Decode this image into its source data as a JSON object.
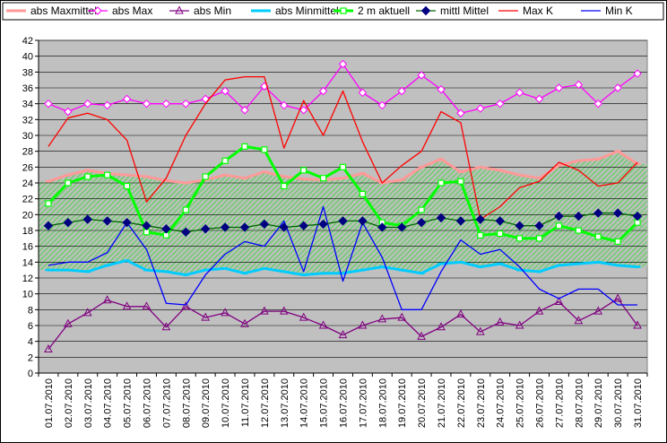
{
  "chart_data": {
    "type": "line",
    "title": "",
    "xlabel": "",
    "ylabel": "",
    "ylim": [
      0,
      42
    ],
    "yticks": [
      0,
      2,
      4,
      6,
      8,
      10,
      12,
      14,
      16,
      18,
      20,
      22,
      24,
      26,
      28,
      30,
      32,
      34,
      36,
      38,
      40,
      42
    ],
    "grid": true,
    "legend_position": "top",
    "plot_background": "#c0c0c0",
    "band_fill": "#7fc97f",
    "categories": [
      "01.07.2010",
      "02.07.2010",
      "03.07.2010",
      "04.07.2010",
      "05.07.2010",
      "06.07.2010",
      "07.07.2010",
      "08.07.2010",
      "09.07.2010",
      "10.07.2010",
      "11.07.2010",
      "12.07.2010",
      "13.07.2010",
      "14.07.2010",
      "15.07.2010",
      "16.07.2010",
      "17.07.2010",
      "18.07.2010",
      "19.07.2010",
      "20.07.2010",
      "21.07.2010",
      "22.07.2010",
      "23.07.2010",
      "24.07.2010",
      "25.07.2010",
      "26.07.2010",
      "27.07.2010",
      "28.07.2010",
      "29.07.2010",
      "30.07.2010",
      "31.07.2010"
    ],
    "series": [
      {
        "name": "abs Maxmittel",
        "color": "#ff9999",
        "marker": "dash",
        "width": 3,
        "values": [
          24.2,
          25.0,
          25.6,
          25.2,
          25.0,
          24.8,
          24.3,
          24.0,
          24.4,
          25.0,
          24.6,
          25.4,
          24.8,
          24.5,
          24.4,
          24.6,
          25.2,
          24.0,
          24.4,
          26.0,
          27.0,
          25.4,
          26.0,
          25.6,
          25.0,
          24.6,
          26.2,
          26.8,
          27.0,
          28.0,
          26.4
        ]
      },
      {
        "name": "abs Max",
        "color": "#ff00ff",
        "marker": "diamond-open",
        "width": 1.3,
        "values": [
          34.0,
          33.0,
          34.0,
          33.8,
          34.6,
          34.0,
          34.0,
          34.0,
          34.6,
          35.6,
          33.2,
          36.2,
          33.8,
          33.2,
          35.6,
          39.0,
          35.4,
          33.8,
          35.6,
          37.6,
          35.8,
          32.8,
          33.4,
          34.0,
          35.4,
          34.6,
          36.0,
          36.4,
          34.0,
          36.0,
          37.8
        ]
      },
      {
        "name": "abs Min",
        "color": "#800080",
        "marker": "triangle-open",
        "width": 1.3,
        "values": [
          3.0,
          6.2,
          7.6,
          9.2,
          8.4,
          8.4,
          5.8,
          8.4,
          7.0,
          7.6,
          6.2,
          7.8,
          7.8,
          7.0,
          6.0,
          4.8,
          6.0,
          6.8,
          7.0,
          4.6,
          5.8,
          7.4,
          5.2,
          6.4,
          6.0,
          7.8,
          9.0,
          6.6,
          7.8,
          9.4,
          6.0
        ]
      },
      {
        "name": "abs Minmittel",
        "color": "#00ccff",
        "marker": "dash",
        "width": 3,
        "values": [
          13.0,
          13.0,
          12.8,
          13.6,
          14.2,
          13.0,
          12.8,
          12.4,
          13.0,
          13.2,
          12.6,
          13.2,
          12.8,
          12.4,
          12.6,
          12.6,
          13.0,
          13.4,
          13.0,
          12.6,
          13.8,
          14.0,
          13.4,
          13.8,
          13.0,
          12.8,
          13.6,
          13.8,
          14.0,
          13.6,
          13.4
        ]
      },
      {
        "name": "2 m aktuell",
        "color": "#00ff00",
        "marker": "square-open",
        "width": 3,
        "values": [
          21.4,
          24.0,
          24.8,
          25.0,
          23.6,
          17.8,
          17.4,
          20.6,
          24.8,
          26.8,
          28.6,
          28.2,
          23.6,
          25.6,
          24.6,
          26.0,
          22.6,
          19.0,
          18.6,
          20.6,
          24.0,
          24.2,
          17.4,
          17.6,
          17.0,
          17.0,
          18.6,
          18.0,
          17.2,
          16.6,
          19.0
        ]
      },
      {
        "name": "mittl Mittel",
        "color": "#006400",
        "marker": "diamond-filled",
        "width": 1.3,
        "values": [
          18.6,
          19.0,
          19.4,
          19.2,
          19.0,
          18.6,
          18.2,
          17.8,
          18.2,
          18.4,
          18.4,
          18.8,
          18.4,
          18.6,
          18.8,
          19.2,
          19.2,
          18.4,
          18.4,
          19.0,
          19.6,
          19.2,
          19.4,
          19.2,
          18.6,
          18.6,
          19.8,
          19.8,
          20.2,
          20.2,
          19.8
        ]
      },
      {
        "name": "Max K",
        "color": "#ff0000",
        "marker": "none",
        "width": 1.3,
        "values": [
          28.6,
          32.2,
          32.8,
          32.0,
          29.4,
          21.6,
          24.6,
          30.0,
          34.0,
          37.0,
          37.4,
          37.4,
          28.4,
          34.4,
          30.0,
          35.6,
          29.2,
          24.0,
          26.2,
          28.0,
          33.0,
          31.6,
          19.4,
          21.0,
          23.4,
          24.2,
          26.6,
          25.6,
          23.6,
          24.0,
          26.6
        ]
      },
      {
        "name": "Min K",
        "color": "#0000ff",
        "marker": "none",
        "width": 1.3,
        "values": [
          13.6,
          14.0,
          14.0,
          15.2,
          19.0,
          15.6,
          8.8,
          8.6,
          12.4,
          15.0,
          16.6,
          16.0,
          19.2,
          12.8,
          21.0,
          11.6,
          19.0,
          14.6,
          8.0,
          8.0,
          12.8,
          16.8,
          15.0,
          15.6,
          13.4,
          10.6,
          9.4,
          10.6,
          10.6,
          8.6,
          8.6
        ]
      }
    ]
  }
}
